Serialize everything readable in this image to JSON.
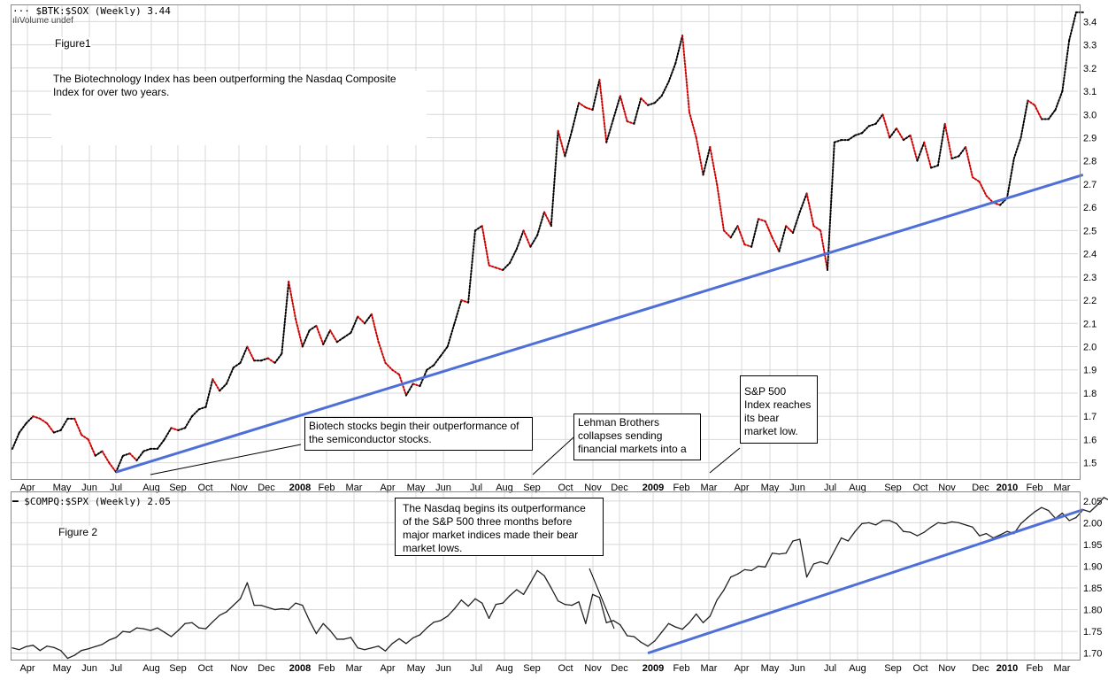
{
  "top_panel": {
    "legend": "$BTK:$SOX (Weekly) 3.44",
    "volume_label": "Volume undef",
    "figure_label": "Figure1",
    "description": "The Biotechnology Index has been outperforming the Nasdaq Composite Index for over two years.",
    "annotations": {
      "biotech": "Biotech stocks begin their outperformance of the semiconductor stocks.",
      "lehman": "Lehman Brothers collapses sending financial markets into a",
      "sp500": "S&P 500 Index reaches its bear market low."
    }
  },
  "bottom_panel": {
    "legend": "$COMPQ:$SPX (Weekly) 2.05",
    "figure_label": "Figure 2",
    "annotation": "The Nasdaq begins its outperformance of the S&P 500 three months before major market indices made their bear market lows."
  },
  "x_axis_labels": [
    "Apr",
    "May",
    "Jun",
    "Jul",
    "Aug",
    "Sep",
    "Oct",
    "Nov",
    "Dec",
    "2008",
    "Feb",
    "Mar",
    "Apr",
    "May",
    "Jun",
    "Jul",
    "Aug",
    "Sep",
    "Oct",
    "Nov",
    "Dec",
    "2009",
    "Feb",
    "Mar",
    "Apr",
    "May",
    "Jun",
    "Jul",
    "Aug",
    "Sep",
    "Oct",
    "Nov",
    "Dec",
    "2010",
    "Feb",
    "Mar"
  ],
  "colors": {
    "trendline": "#4f6fd8",
    "up": "#000000",
    "down": "#cc0000",
    "grid": "#d8d8d8"
  },
  "chart_data": [
    {
      "type": "line",
      "title": "$BTK:$SOX (Weekly) 3.44",
      "ylim": [
        1.43,
        3.47
      ],
      "yticks": [
        1.5,
        1.6,
        1.7,
        1.8,
        1.9,
        2.0,
        2.1,
        2.2,
        2.3,
        2.4,
        2.5,
        2.6,
        2.7,
        2.8,
        2.9,
        3.0,
        3.1,
        3.2,
        3.3,
        3.4
      ],
      "ytick_labels": [
        "1.5",
        "1.6",
        "1.7",
        "1.8",
        "1.9",
        "2.0",
        "2.1",
        "2.2",
        "2.3",
        "2.4",
        "2.5",
        "2.6",
        "2.7",
        "2.8",
        "2.9",
        "3.0",
        "3.1",
        "3.2",
        "3.3",
        "3.4"
      ],
      "x_weeks": 155,
      "series": [
        {
          "values": [
            1.56,
            1.63,
            1.67,
            1.7,
            1.69,
            1.67,
            1.63,
            1.64,
            1.69,
            1.69,
            1.62,
            1.6,
            1.53,
            1.55,
            1.5,
            1.46,
            1.53,
            1.54,
            1.51,
            1.55,
            1.56,
            1.56,
            1.6,
            1.65,
            1.64,
            1.65,
            1.7,
            1.73,
            1.74,
            1.86,
            1.81,
            1.84,
            1.91,
            1.93,
            2.0,
            1.94,
            1.94,
            1.95,
            1.93,
            1.97,
            2.28,
            2.12,
            2.0,
            2.07,
            2.09,
            2.01,
            2.07,
            2.02,
            2.04,
            2.06,
            2.13,
            2.1,
            2.14,
            2.02,
            1.93,
            1.9,
            1.88,
            1.79,
            1.84,
            1.83,
            1.9,
            1.92,
            1.96,
            2.0,
            2.1,
            2.2,
            2.19,
            2.5,
            2.52,
            2.35,
            2.34,
            2.33,
            2.36,
            2.42,
            2.5,
            2.43,
            2.48,
            2.58,
            2.52,
            2.93,
            2.82,
            2.93,
            3.05,
            3.03,
            3.02,
            3.15,
            2.88,
            2.98,
            3.08,
            2.97,
            2.96,
            3.07,
            3.04,
            3.05,
            3.08,
            3.14,
            3.22,
            3.34,
            3.01,
            2.9,
            2.74,
            2.86,
            2.7,
            2.5,
            2.47,
            2.52,
            2.44,
            2.43,
            2.55,
            2.54,
            2.47,
            2.41,
            2.52,
            2.49,
            2.58,
            2.66,
            2.52,
            2.5,
            2.33,
            2.88,
            2.89,
            2.89,
            2.91,
            2.92,
            2.95,
            2.96,
            3.0,
            2.9,
            2.94,
            2.89,
            2.91,
            2.8,
            2.88,
            2.77,
            2.78,
            2.96,
            2.81,
            2.82,
            2.86,
            2.73,
            2.71,
            2.65,
            2.62,
            2.61,
            2.64,
            2.81,
            2.9,
            3.06,
            3.04,
            2.98,
            2.98,
            3.02,
            3.1,
            3.32,
            3.44,
            3.44
          ]
        }
      ],
      "trendline": {
        "from": [
          15,
          1.46
        ],
        "to": [
          155,
          2.74
        ]
      }
    },
    {
      "type": "line",
      "title": "$COMPQ:$SPX (Weekly) 2.05",
      "ylim": [
        1.685,
        2.07
      ],
      "yticks": [
        1.7,
        1.75,
        1.8,
        1.85,
        1.9,
        1.95,
        2.0,
        2.05
      ],
      "ytick_labels": [
        "1.70",
        "1.75",
        "1.80",
        "1.85",
        "1.90",
        "1.95",
        "2.00",
        "2.05"
      ],
      "x_weeks": 155,
      "series": [
        {
          "values": [
            1.712,
            1.708,
            1.715,
            1.718,
            1.706,
            1.716,
            1.713,
            1.706,
            1.688,
            1.695,
            1.706,
            1.71,
            1.715,
            1.72,
            1.73,
            1.736,
            1.75,
            1.748,
            1.758,
            1.756,
            1.752,
            1.758,
            1.748,
            1.738,
            1.752,
            1.768,
            1.77,
            1.758,
            1.756,
            1.772,
            1.787,
            1.795,
            1.81,
            1.825,
            1.862,
            1.81,
            1.81,
            1.805,
            1.8,
            1.802,
            1.8,
            1.815,
            1.81,
            1.775,
            1.745,
            1.768,
            1.752,
            1.732,
            1.732,
            1.736,
            1.712,
            1.708,
            1.712,
            1.716,
            1.705,
            1.722,
            1.733,
            1.722,
            1.735,
            1.742,
            1.758,
            1.771,
            1.775,
            1.785,
            1.802,
            1.822,
            1.808,
            1.825,
            1.815,
            1.78,
            1.812,
            1.815,
            1.832,
            1.846,
            1.835,
            1.862,
            1.89,
            1.878,
            1.85,
            1.82,
            1.812,
            1.81,
            1.818,
            1.768,
            1.835,
            1.828,
            1.77,
            1.775,
            1.765,
            1.74,
            1.738,
            1.725,
            1.716,
            1.728,
            1.748,
            1.768,
            1.76,
            1.755,
            1.77,
            1.79,
            1.77,
            1.785,
            1.822,
            1.845,
            1.875,
            1.882,
            1.892,
            1.89,
            1.9,
            1.898,
            1.93,
            1.928,
            1.93,
            1.958,
            1.962,
            1.875,
            1.905,
            1.91,
            1.905,
            1.935,
            1.965,
            1.958,
            1.98,
            1.998,
            2.0,
            1.995,
            2.005,
            2.005,
            1.998,
            1.98,
            1.978,
            1.97,
            1.978,
            1.99,
            2.0,
            1.998,
            2.002,
            2.0,
            1.995,
            1.99,
            1.97,
            1.975,
            1.965,
            1.972,
            1.98,
            1.975,
            1.998,
            2.012,
            2.025,
            2.035,
            2.028,
            2.01,
            2.022,
            2.005,
            2.012,
            2.03,
            2.025,
            2.04,
            2.058,
            2.05
          ]
        }
      ],
      "trendline": {
        "from": [
          92,
          1.7
        ],
        "to": [
          155,
          2.03
        ]
      }
    }
  ]
}
